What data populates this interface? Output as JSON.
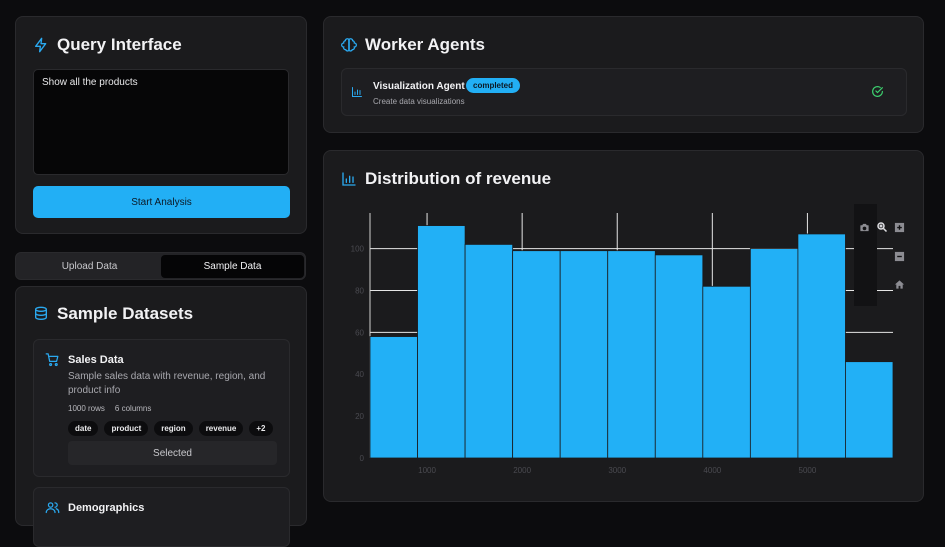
{
  "query": {
    "title": "Query Interface",
    "value": "Show all the products",
    "button": "Start Analysis"
  },
  "tabs": {
    "upload": "Upload Data",
    "sample": "Sample Data"
  },
  "datasets": {
    "title": "Sample Datasets",
    "items": [
      {
        "name": "Sales Data",
        "description": "Sample sales data with revenue, region, and product info",
        "rows": "1000 rows",
        "columns": "6 columns",
        "chips": [
          "date",
          "product",
          "region",
          "revenue",
          "+2"
        ],
        "status": "Selected"
      },
      {
        "name": "Demographics"
      }
    ]
  },
  "agents": {
    "title": "Worker Agents",
    "items": [
      {
        "name": "Visualization Agent",
        "status": "completed",
        "description": "Create data visualizations"
      }
    ]
  },
  "chart_data": {
    "type": "bar",
    "title": "Distribution of revenue",
    "xlabel": "",
    "ylabel": "",
    "bins": [
      {
        "x0": 400,
        "x1": 900,
        "count": 58
      },
      {
        "x0": 900,
        "x1": 1400,
        "count": 111
      },
      {
        "x0": 1400,
        "x1": 1900,
        "count": 102
      },
      {
        "x0": 1900,
        "x1": 2400,
        "count": 99
      },
      {
        "x0": 2400,
        "x1": 2900,
        "count": 99
      },
      {
        "x0": 2900,
        "x1": 3400,
        "count": 99
      },
      {
        "x0": 3400,
        "x1": 3900,
        "count": 97
      },
      {
        "x0": 3900,
        "x1": 4400,
        "count": 82
      },
      {
        "x0": 4400,
        "x1": 4900,
        "count": 100
      },
      {
        "x0": 4900,
        "x1": 5400,
        "count": 107
      },
      {
        "x0": 5400,
        "x1": 5900,
        "count": 46
      }
    ],
    "xlim": [
      400,
      5900
    ],
    "ylim": [
      0,
      117
    ],
    "x_ticks": [
      1000,
      2000,
      3000,
      4000,
      5000
    ],
    "y_ticks": [
      0,
      20,
      40,
      60,
      80,
      100
    ],
    "bar_color": "#22b0f6",
    "grid": true
  },
  "colors": {
    "accent": "#22aff5",
    "success": "#3ccf6e",
    "background": "#0c0c0e",
    "card": "#1b1b1d"
  }
}
